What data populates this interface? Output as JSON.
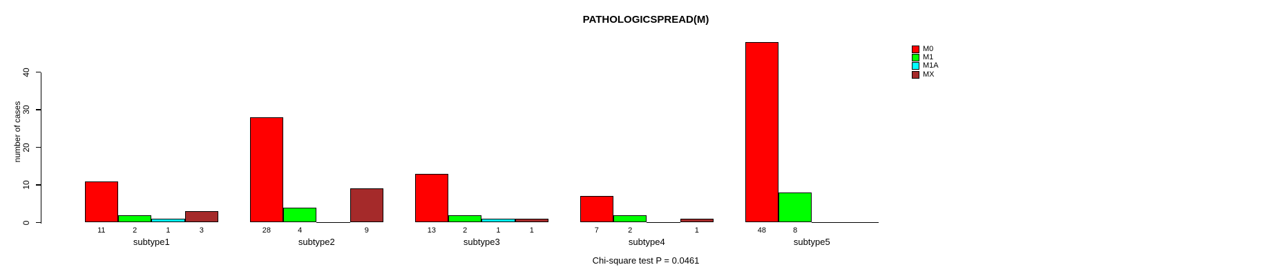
{
  "title": "PATHOLOGICSPREAD(M)",
  "y_axis": {
    "label": "number of cases",
    "ticks": [
      0,
      10,
      20,
      30,
      40
    ]
  },
  "footer": "Chi-square test P = 0.0461",
  "legend": {
    "items": [
      "M0",
      "M1",
      "M1A",
      "MX"
    ]
  },
  "colors": {
    "M0": "#FF0000",
    "M1": "#00FF00",
    "M1A": "#00FFFF",
    "MX": "#A52A2A"
  },
  "chart_data": {
    "type": "bar",
    "title": "PATHOLOGICSPREAD(M)",
    "xlabel": "",
    "ylabel": "number of cases",
    "ylim": [
      0,
      48
    ],
    "yticks": [
      0,
      10,
      20,
      30,
      40
    ],
    "grid": false,
    "legend_position": "right",
    "categories": [
      "subtype1",
      "subtype2",
      "subtype3",
      "subtype4",
      "subtype5"
    ],
    "series": [
      {
        "name": "M0",
        "color": "#FF0000",
        "values": [
          11,
          28,
          13,
          7,
          48
        ]
      },
      {
        "name": "M1",
        "color": "#00FF00",
        "values": [
          2,
          4,
          2,
          2,
          8
        ]
      },
      {
        "name": "M1A",
        "color": "#00FFFF",
        "values": [
          1,
          0,
          1,
          0,
          0
        ]
      },
      {
        "name": "MX",
        "color": "#A52A2A",
        "values": [
          3,
          9,
          1,
          1,
          0
        ]
      }
    ],
    "bar_value_labels_shown_only_when_nonzero": true,
    "annotation": "Chi-square test P = 0.0461"
  }
}
